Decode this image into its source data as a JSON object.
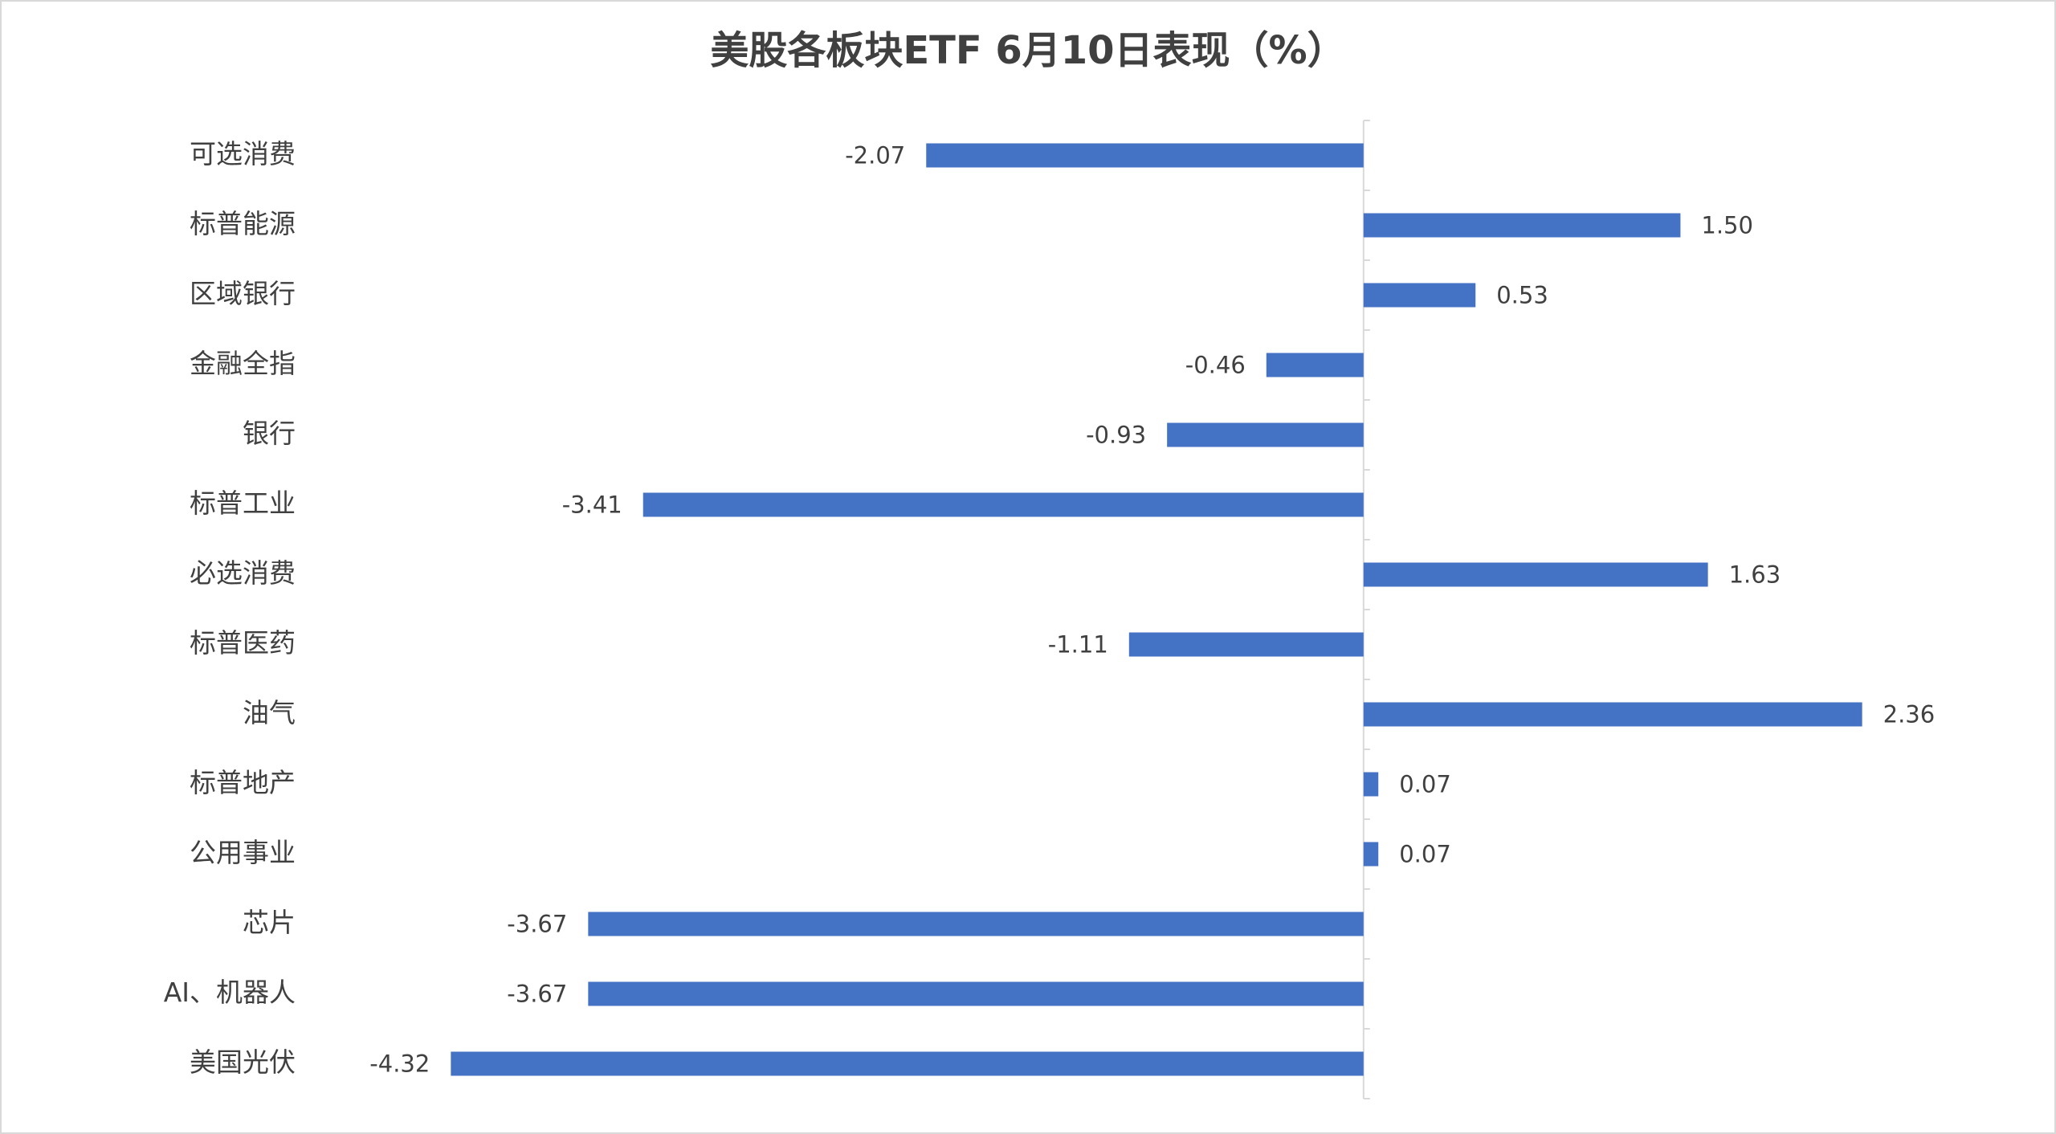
{
  "chart_data": {
    "type": "barh",
    "title": "美股各板块ETF  6月10日表现（%）",
    "categories": [
      "可选消费",
      "标普能源",
      "区域银行",
      "金融全指",
      "银行",
      "标普工业",
      "必选消费",
      "标普医药",
      "油气",
      "标普地产",
      "公用事业",
      "芯片",
      "AI、机器人",
      "美国光伏"
    ],
    "values": [
      -2.07,
      1.5,
      0.53,
      -0.46,
      -0.93,
      -3.41,
      1.63,
      -1.11,
      2.36,
      0.07,
      0.07,
      -3.67,
      -3.67,
      -4.32
    ],
    "value_labels": [
      "-2.07",
      "1.50",
      "0.53",
      "-0.46",
      "-0.93",
      "-3.41",
      "1.63",
      "-1.11",
      "2.36",
      "0.07",
      "0.07",
      "-3.67",
      "-3.67",
      "-4.32"
    ],
    "color": "#4472c4",
    "xlim": [
      -4.5,
      3.0
    ]
  }
}
